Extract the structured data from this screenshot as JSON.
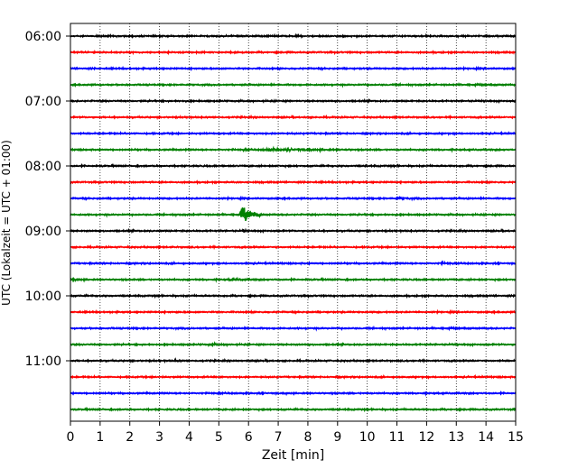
{
  "chart_data": {
    "type": "line",
    "title": "",
    "xlabel": "Zeit  [min]",
    "ylabel": "UTC (Lokalzeit = UTC + 01:00)",
    "xlim": [
      0,
      15
    ],
    "x_ticks": [
      "0",
      "1",
      "2",
      "3",
      "4",
      "5",
      "6",
      "7",
      "8",
      "9",
      "10",
      "11",
      "12",
      "13",
      "14",
      "15"
    ],
    "y_ticks": [
      {
        "label": "06:00",
        "trace_index": 0
      },
      {
        "label": "07:00",
        "trace_index": 4
      },
      {
        "label": "08:00",
        "trace_index": 8
      },
      {
        "label": "09:00",
        "trace_index": 12
      },
      {
        "label": "10:00",
        "trace_index": 16
      },
      {
        "label": "11:00",
        "trace_index": 20
      }
    ],
    "grid": "vertical-dotted",
    "trace_interval_min": 15,
    "color_cycle": [
      "#000000",
      "#ff0000",
      "#0000ff",
      "#008000"
    ],
    "traces": [
      {
        "start": "06:00",
        "color": "#000000",
        "events": []
      },
      {
        "start": "06:15",
        "color": "#ff0000",
        "events": []
      },
      {
        "start": "06:30",
        "color": "#0000ff",
        "events": []
      },
      {
        "start": "06:45",
        "color": "#008000",
        "events": []
      },
      {
        "start": "07:00",
        "color": "#000000",
        "events": []
      },
      {
        "start": "07:15",
        "color": "#ff0000",
        "events": []
      },
      {
        "start": "07:30",
        "color": "#0000ff",
        "events": []
      },
      {
        "start": "07:45",
        "color": "#008000",
        "events": [
          {
            "t": 5.8,
            "dur": 0.3,
            "amp": 0.3
          },
          {
            "t": 6.4,
            "dur": 3.2,
            "amp": 0.45
          }
        ]
      },
      {
        "start": "08:00",
        "color": "#000000",
        "events": []
      },
      {
        "start": "08:15",
        "color": "#ff0000",
        "events": []
      },
      {
        "start": "08:30",
        "color": "#0000ff",
        "events": [
          {
            "t": 10.9,
            "dur": 0.8,
            "amp": 0.3
          }
        ]
      },
      {
        "start": "08:45",
        "color": "#008000",
        "events": [
          {
            "t": 5.7,
            "dur": 0.8,
            "amp": 3.8
          }
        ]
      },
      {
        "start": "09:00",
        "color": "#000000",
        "events": [
          {
            "t": 5.8,
            "dur": 0.15,
            "amp": 0.4
          }
        ]
      },
      {
        "start": "09:15",
        "color": "#ff0000",
        "events": []
      },
      {
        "start": "09:30",
        "color": "#0000ff",
        "events": [
          {
            "t": 12.4,
            "dur": 0.6,
            "amp": 0.25
          }
        ]
      },
      {
        "start": "09:45",
        "color": "#008000",
        "events": [
          {
            "t": 0.0,
            "dur": 0.7,
            "amp": 0.25
          },
          {
            "t": 5.3,
            "dur": 1.0,
            "amp": 0.3
          }
        ]
      },
      {
        "start": "10:00",
        "color": "#000000",
        "events": []
      },
      {
        "start": "10:15",
        "color": "#ff0000",
        "events": []
      },
      {
        "start": "10:30",
        "color": "#0000ff",
        "events": []
      },
      {
        "start": "10:45",
        "color": "#008000",
        "events": [
          {
            "t": 4.6,
            "dur": 0.9,
            "amp": 0.2
          }
        ]
      },
      {
        "start": "11:00",
        "color": "#000000",
        "events": [
          {
            "t": 3.5,
            "dur": 0.3,
            "amp": 0.3
          }
        ]
      },
      {
        "start": "11:15",
        "color": "#ff0000",
        "events": []
      },
      {
        "start": "11:30",
        "color": "#0000ff",
        "events": [
          {
            "t": 4.95,
            "dur": 0.15,
            "amp": 0.35
          }
        ]
      },
      {
        "start": "11:45",
        "color": "#008000",
        "events": []
      }
    ]
  }
}
